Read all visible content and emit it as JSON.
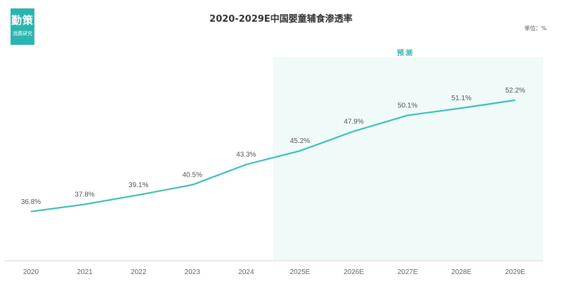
{
  "logo": {
    "name": "勤策",
    "subtitle": "消费研究"
  },
  "unit_label": "单位：%",
  "forecast_label": "预测",
  "colors": {
    "line": "#3dbfb5",
    "forecast_bg": "#f0faf8",
    "logo_bg": "#2bb5b0"
  },
  "chart_data": {
    "type": "line",
    "title": "2020-2029E中国婴童辅食渗透率",
    "xlabel": "",
    "ylabel": "",
    "categories": [
      "2020",
      "2021",
      "2022",
      "2023",
      "2024",
      "2025E",
      "2026E",
      "2027E",
      "2028E",
      "2029E"
    ],
    "values": [
      36.8,
      37.8,
      39.1,
      40.5,
      43.3,
      45.2,
      47.9,
      50.1,
      51.1,
      52.2
    ],
    "data_labels": [
      "36.8%",
      "37.8%",
      "39.1%",
      "40.5%",
      "43.3%",
      "45.2%",
      "47.9%",
      "50.1%",
      "51.1%",
      "52.2%"
    ],
    "forecast_start_index": 5,
    "ylim": [
      30,
      55
    ],
    "grid": false
  }
}
